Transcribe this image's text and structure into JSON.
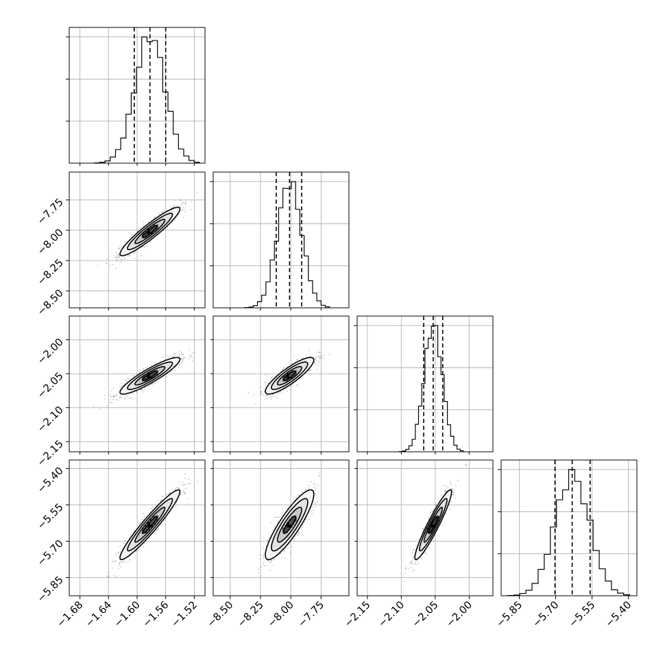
{
  "chart_data": {
    "type": "corner",
    "grid": true,
    "parameters": [
      {
        "index": 0,
        "median": -1.582,
        "q16": -1.604,
        "q84": -1.56,
        "sigma": 0.021,
        "range": [
          -1.695,
          -1.505
        ],
        "ticks": [
          -1.68,
          -1.64,
          -1.6,
          -1.56,
          -1.52
        ],
        "tick_labels": [
          "−1.68",
          "−1.64",
          "−1.60",
          "−1.56",
          "−1.52"
        ]
      },
      {
        "index": 1,
        "median": -8.01,
        "q16": -8.12,
        "q84": -7.91,
        "sigma": 0.1,
        "range": [
          -8.64,
          -7.52
        ],
        "ticks": [
          -8.5,
          -8.25,
          -8.0,
          -7.75
        ],
        "tick_labels": [
          "−8.50",
          "−8.25",
          "−8.00",
          "−7.75"
        ]
      },
      {
        "index": 2,
        "median": -2.053,
        "q16": -2.067,
        "q84": -2.039,
        "sigma": 0.0135,
        "range": [
          -2.165,
          -1.965
        ],
        "ticks": [
          -2.15,
          -2.1,
          -2.05,
          -2.0
        ],
        "tick_labels": [
          "−2.15",
          "−2.10",
          "−2.05",
          "−2.00"
        ]
      },
      {
        "index": 3,
        "median": -5.632,
        "q16": -5.703,
        "q84": -5.558,
        "sigma": 0.072,
        "range": [
          -5.925,
          -5.365
        ],
        "ticks": [
          -5.85,
          -5.7,
          -5.55,
          -5.4
        ],
        "tick_labels": [
          "−5.85",
          "−5.70",
          "−5.55",
          "−5.40"
        ]
      }
    ],
    "correlations": [
      {
        "row": 1,
        "col": 0,
        "rho": 0.93
      },
      {
        "row": 2,
        "col": 0,
        "rho": 0.9
      },
      {
        "row": 2,
        "col": 1,
        "rho": 0.86
      },
      {
        "row": 3,
        "col": 0,
        "rho": 0.95
      },
      {
        "row": 3,
        "col": 1,
        "rho": 0.87
      },
      {
        "row": 3,
        "col": 2,
        "rho": 0.94
      }
    ],
    "histogram_bins": 20,
    "contour_levels_sigma": [
      0.5,
      1.0,
      1.5,
      2.0
    ],
    "quantile_lines": [
      "q16",
      "median",
      "q84"
    ],
    "colors": {
      "ink": "#000000",
      "grid": "#b0b0b0",
      "scatter": "#555555",
      "background": "#ffffff"
    }
  }
}
